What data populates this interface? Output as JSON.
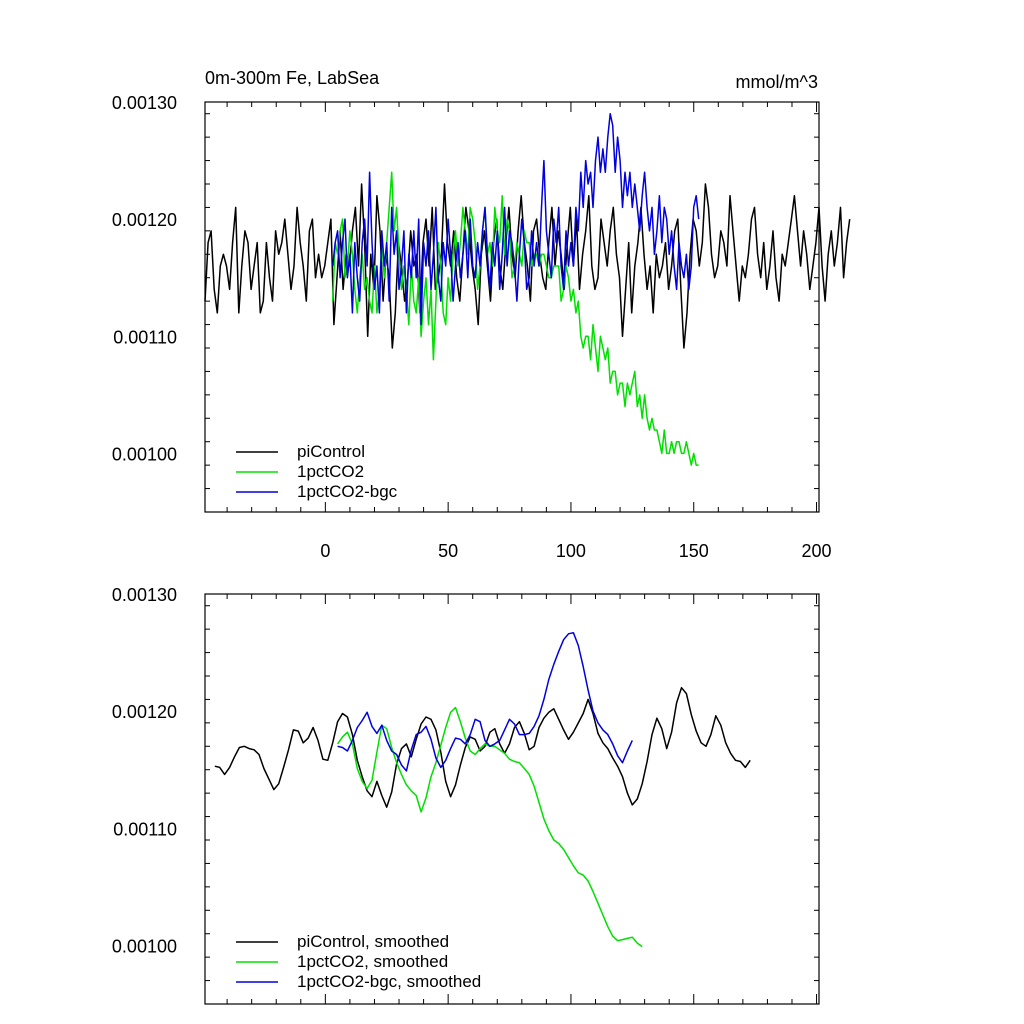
{
  "colors": {
    "piControl": "#000000",
    "pct": "#00e000",
    "bgc": "#0000e0",
    "axis": "#000000"
  },
  "chart_data": [
    {
      "type": "line",
      "title": "0m-300m Fe, LabSea",
      "units": "mmol/m^3",
      "xlim": [
        -49,
        201
      ],
      "ylim": [
        0.00095,
        0.0013
      ],
      "ytick_labels": [
        "0.00100",
        "0.00110",
        "0.00120",
        "0.00130"
      ],
      "xtick_labels": [
        "0",
        "50",
        "100",
        "150",
        "200"
      ],
      "legend": [
        "piControl",
        "1pctCO2",
        "1pctCO2-bgc"
      ],
      "legend_position": "bottom-left",
      "series": [
        {
          "name": "piControl",
          "x_start": -49,
          "x_step": 1.25,
          "values": [
            0.00113,
            0.00118,
            0.00119,
            0.00114,
            0.00112,
            0.00116,
            0.00117,
            0.00116,
            0.00114,
            0.00118,
            0.00121,
            0.00112,
            0.00116,
            0.00119,
            0.00118,
            0.00114,
            0.00116,
            0.00118,
            0.00112,
            0.00113,
            0.00118,
            0.00115,
            0.00113,
            0.00119,
            0.00117,
            0.00118,
            0.0012,
            0.00117,
            0.00114,
            0.00116,
            0.00121,
            0.00118,
            0.00116,
            0.00113,
            0.00119,
            0.0012,
            0.00115,
            0.00117,
            0.00115,
            0.00116,
            0.00118,
            0.0012,
            0.00111,
            0.00115,
            0.00119,
            0.00114,
            0.00117,
            0.00116,
            0.00119,
            0.00121,
            0.00116,
            0.00123,
            0.00118,
            0.0011,
            0.00117,
            0.00114,
            0.00122,
            0.00119,
            0.00113,
            0.00117,
            0.00115,
            0.00109,
            0.00112,
            0.00118,
            0.00116,
            0.00113,
            0.00115,
            0.00119,
            0.00116,
            0.00117,
            0.00112,
            0.00118,
            0.0012,
            0.00116,
            0.00121,
            0.00114,
            0.00115,
            0.00117,
            0.00123,
            0.00118,
            0.00116,
            0.00119,
            0.00115,
            0.00113,
            0.00117,
            0.00121,
            0.00119,
            0.00116,
            0.00114,
            0.00111,
            0.00117,
            0.00119,
            0.00116,
            0.00113,
            0.00118,
            0.0012,
            0.00116,
            0.00114,
            0.00118,
            0.00121,
            0.00117,
            0.00115,
            0.00119,
            0.00122,
            0.00118,
            0.00116,
            0.00113,
            0.00119,
            0.0012,
            0.00117,
            0.00115,
            0.00114,
            0.00118,
            0.00121,
            0.00116,
            0.00119,
            0.00117,
            0.00114,
            0.00118,
            0.00121,
            0.00116,
            0.0012,
            0.00114,
            0.00117,
            0.00119,
            0.00122,
            0.00116,
            0.00114,
            0.00115,
            0.0012,
            0.00118,
            0.00116,
            0.00119,
            0.00121,
            0.00117,
            0.00115,
            0.0011,
            0.00114,
            0.00118,
            0.00112,
            0.00116,
            0.00118,
            0.00121,
            0.00117,
            0.00114,
            0.00116,
            0.00112,
            0.00117,
            0.00115,
            0.00116,
            0.00118,
            0.00114,
            0.00116,
            0.00119,
            0.0012,
            0.00114,
            0.00109,
            0.00112,
            0.00117,
            0.0012,
            0.00119,
            0.00116,
            0.00118,
            0.00123,
            0.00121,
            0.00117,
            0.00115,
            0.00116,
            0.00119,
            0.00118,
            0.00116,
            0.00122,
            0.00119,
            0.00116,
            0.00113,
            0.00116,
            0.00115,
            0.00117,
            0.0012,
            0.00121,
            0.00117,
            0.00115,
            0.00118,
            0.00114,
            0.00116,
            0.00119,
            0.00115,
            0.00113,
            0.00117,
            0.00116,
            0.00118,
            0.0012,
            0.00122,
            0.00119,
            0.00116,
            0.00119,
            0.00117,
            0.00114,
            0.00116,
            0.00118,
            0.00121,
            0.00116,
            0.00113,
            0.00117,
            0.00119,
            0.00116,
            0.00118,
            0.00121,
            0.00115,
            0.00118,
            0.0012
          ]
        },
        {
          "name": "1pctCO2",
          "x_start": 3,
          "x_step": 1,
          "values": [
            0.00113,
            0.00118,
            0.00117,
            0.00119,
            0.0012,
            0.00115,
            0.00116,
            0.00119,
            0.00117,
            0.00114,
            0.00112,
            0.00115,
            0.00117,
            0.00114,
            0.00115,
            0.00113,
            0.00112,
            0.00116,
            0.00112,
            0.00114,
            0.00118,
            0.00115,
            0.00118,
            0.00121,
            0.00124,
            0.00119,
            0.00121,
            0.00117,
            0.00114,
            0.00116,
            0.00114,
            0.00111,
            0.00116,
            0.00113,
            0.00112,
            0.00115,
            0.0011,
            0.00113,
            0.00115,
            0.00111,
            0.00114,
            0.00108,
            0.00113,
            0.00118,
            0.00116,
            0.00112,
            0.00111,
            0.00115,
            0.00113,
            0.00117,
            0.00119,
            0.00116,
            0.00118,
            0.00121,
            0.00119,
            0.00117,
            0.00121,
            0.0012,
            0.00118,
            0.00114,
            0.00116,
            0.00119,
            0.00121,
            0.00117,
            0.00118,
            0.00116,
            0.00121,
            0.00119,
            0.00118,
            0.00122,
            0.00117,
            0.0012,
            0.00119,
            0.00115,
            0.00116,
            0.00118,
            0.00117,
            0.00116,
            0.00119,
            0.00118,
            0.00118,
            0.00116,
            0.00117,
            0.00117,
            0.00116,
            0.00117,
            0.00117,
            0.00116,
            0.00115,
            0.00115,
            0.00116,
            0.00116,
            0.00116,
            0.00113,
            0.00114,
            0.00116,
            0.00115,
            0.00113,
            0.00114,
            0.00112,
            0.00113,
            0.0011,
            0.00109,
            0.0011,
            0.0011,
            0.00108,
            0.00111,
            0.00109,
            0.00107,
            0.0011,
            0.00109,
            0.00108,
            0.00109,
            0.00106,
            0.00107,
            0.00107,
            0.00105,
            0.00106,
            0.00106,
            0.00104,
            0.00106,
            0.00105,
            0.00106,
            0.00107,
            0.00104,
            0.00105,
            0.00103,
            0.00105,
            0.00103,
            0.00102,
            0.00103,
            0.00102,
            0.00102,
            0.00101,
            0.001,
            0.00102,
            0.001,
            0.001,
            0.00101,
            0.001,
            0.00101,
            0.00101,
            0.001,
            0.001,
            0.00101,
            0.001,
            0.00099,
            0.001,
            0.00099,
            0.00099
          ]
        },
        {
          "name": "1pctCO2-bgc",
          "x_start": 3,
          "x_step": 1,
          "values": [
            0.00116,
            0.00118,
            0.00119,
            0.00115,
            0.00118,
            0.0012,
            0.00115,
            0.00117,
            0.00112,
            0.00118,
            0.00115,
            0.00113,
            0.00118,
            0.0012,
            0.00116,
            0.00124,
            0.00118,
            0.00114,
            0.00116,
            0.00112,
            0.00119,
            0.00116,
            0.00118,
            0.00113,
            0.00121,
            0.00117,
            0.00119,
            0.00114,
            0.00116,
            0.00119,
            0.00112,
            0.00117,
            0.00115,
            0.00119,
            0.00115,
            0.0012,
            0.00111,
            0.00118,
            0.00116,
            0.00119,
            0.00114,
            0.00117,
            0.00121,
            0.00115,
            0.00113,
            0.00118,
            0.00116,
            0.0012,
            0.00117,
            0.00113,
            0.00116,
            0.00118,
            0.00115,
            0.00117,
            0.00119,
            0.00115,
            0.0012,
            0.00116,
            0.00115,
            0.00118,
            0.00116,
            0.00119,
            0.00121,
            0.00117,
            0.00114,
            0.00118,
            0.00116,
            0.00119,
            0.00114,
            0.00117,
            0.00121,
            0.00116,
            0.00119,
            0.00118,
            0.00116,
            0.00113,
            0.00117,
            0.0012,
            0.00118,
            0.00114,
            0.00115,
            0.00119,
            0.00116,
            0.00118,
            0.00116,
            0.00121,
            0.00125,
            0.00119,
            0.00117,
            0.00115,
            0.0012,
            0.00118,
            0.00121,
            0.00116,
            0.00114,
            0.00119,
            0.00116,
            0.00118,
            0.00116,
            0.00121,
            0.00119,
            0.00124,
            0.00121,
            0.00125,
            0.00123,
            0.00124,
            0.00121,
            0.00125,
            0.00127,
            0.00124,
            0.00126,
            0.00124,
            0.00127,
            0.00129,
            0.00128,
            0.00124,
            0.00127,
            0.00125,
            0.00121,
            0.00124,
            0.00122,
            0.00124,
            0.00121,
            0.00123,
            0.00121,
            0.00119,
            0.00122,
            0.00124,
            0.00121,
            0.00119,
            0.00121,
            0.00117,
            0.00119,
            0.00122,
            0.00118,
            0.00121,
            0.0012,
            0.00117,
            0.00119,
            0.00116,
            0.00114,
            0.00118,
            0.00116,
            0.00115,
            0.00117,
            0.00114,
            0.00116,
            0.00121,
            0.00122,
            0.0012
          ]
        }
      ]
    },
    {
      "type": "line",
      "title": "",
      "xlim": [
        -49,
        201
      ],
      "ylim": [
        0.00095,
        0.0013
      ],
      "ytick_labels": [
        "0.00100",
        "0.00110",
        "0.00120",
        "0.00130"
      ],
      "legend": [
        "piControl, smoothed",
        "1pctCO2, smoothed",
        "1pctCO2-bgc, smoothed"
      ],
      "legend_position": "bottom-left",
      "series": [
        {
          "name": "piControl, smoothed",
          "x_start": -45,
          "x_step": 2,
          "values": [
            0.001153,
            0.001152,
            0.001146,
            0.001152,
            0.001161,
            0.001169,
            0.00117,
            0.001168,
            0.001167,
            0.001163,
            0.001151,
            0.001142,
            0.001133,
            0.001138,
            0.001152,
            0.001167,
            0.001184,
            0.001183,
            0.001173,
            0.001177,
            0.001186,
            0.001175,
            0.001159,
            0.001158,
            0.001173,
            0.001191,
            0.001198,
            0.001195,
            0.00118,
            0.001158,
            0.001144,
            0.001132,
            0.001127,
            0.00114,
            0.001128,
            0.001118,
            0.001131,
            0.001155,
            0.001168,
            0.001172,
            0.001161,
            0.001176,
            0.001189,
            0.001195,
            0.001193,
            0.001184,
            0.001165,
            0.00114,
            0.001127,
            0.001137,
            0.001154,
            0.001169,
            0.001178,
            0.001176,
            0.001166,
            0.00117,
            0.001182,
            0.001185,
            0.001172,
            0.001164,
            0.001172,
            0.001186,
            0.001191,
            0.001181,
            0.001167,
            0.00117,
            0.001186,
            0.001194,
            0.001199,
            0.001202,
            0.001193,
            0.001184,
            0.001176,
            0.001182,
            0.00119,
            0.001198,
            0.00121,
            0.001198,
            0.001181,
            0.001173,
            0.001168,
            0.00116,
            0.001153,
            0.001144,
            0.00113,
            0.00112,
            0.001125,
            0.001138,
            0.001157,
            0.00118,
            0.001194,
            0.001185,
            0.001168,
            0.001182,
            0.001207,
            0.00122,
            0.001215,
            0.001197,
            0.001183,
            0.001173,
            0.00117,
            0.00118,
            0.001196,
            0.001188,
            0.001173,
            0.001164,
            0.001158,
            0.001157,
            0.001152,
            0.001158
          ]
        },
        {
          "name": "1pctCO2, smoothed",
          "x_start": 5,
          "x_step": 2,
          "values": [
            0.001172,
            0.001178,
            0.001182,
            0.001172,
            0.001151,
            0.00114,
            0.001134,
            0.001141,
            0.001165,
            0.001188,
            0.001185,
            0.001169,
            0.001156,
            0.001146,
            0.001137,
            0.001132,
            0.001128,
            0.001114,
            0.001126,
            0.001144,
            0.001156,
            0.001171,
            0.001186,
            0.001199,
            0.001203,
            0.001191,
            0.001177,
            0.001166,
            0.001163,
            0.001168,
            0.001172,
            0.00117,
            0.00117,
            0.001167,
            0.001164,
            0.001159,
            0.001157,
            0.001156,
            0.001151,
            0.001146,
            0.001136,
            0.001122,
            0.001108,
            0.001098,
            0.00109,
            0.001087,
            0.001082,
            0.001075,
            0.001068,
            0.001062,
            0.00106,
            0.001055,
            0.001046,
            0.001036,
            0.001026,
            0.001016,
            0.001008,
            0.001004,
            0.001005,
            0.001006,
            0.001007,
            0.001002,
            0.000999
          ]
        },
        {
          "name": "1pctCO2-bgc, smoothed",
          "x_start": 5,
          "x_step": 2,
          "values": [
            0.00117,
            0.001169,
            0.001166,
            0.001175,
            0.001186,
            0.001192,
            0.001199,
            0.001187,
            0.001181,
            0.001188,
            0.001175,
            0.001166,
            0.001163,
            0.001154,
            0.001149,
            0.001167,
            0.00118,
            0.001182,
            0.001187,
            0.001176,
            0.00116,
            0.001152,
            0.001158,
            0.001168,
            0.001177,
            0.001176,
            0.001172,
            0.00118,
            0.001193,
            0.001191,
            0.001175,
            0.00117,
            0.001172,
            0.001175,
            0.001184,
            0.001193,
            0.001189,
            0.00118,
            0.00118,
            0.001181,
            0.001187,
            0.001196,
            0.00121,
            0.001227,
            0.00124,
            0.001251,
            0.001261,
            0.001266,
            0.001267,
            0.001256,
            0.001238,
            0.001218,
            0.0012,
            0.00119,
            0.001184,
            0.00118,
            0.001172,
            0.001162,
            0.001156,
            0.001166,
            0.001175
          ]
        }
      ]
    }
  ]
}
